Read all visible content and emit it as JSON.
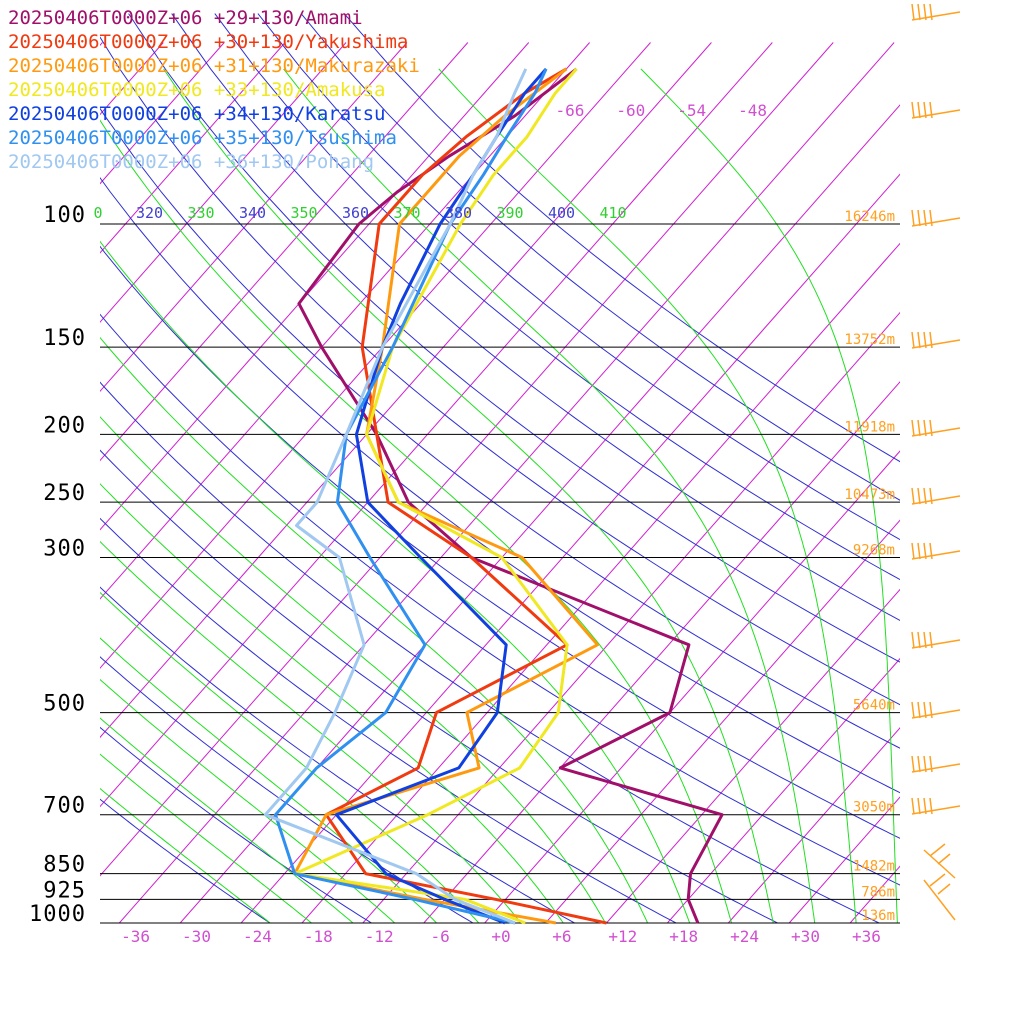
{
  "legend": [
    {
      "label": "20250406T0000Z+06 +29+130/Amami",
      "color": "#a0106a"
    },
    {
      "label": "20250406T0000Z+06 +30+130/Yakushima",
      "color": "#f03a10"
    },
    {
      "label": "20250406T0000Z+06 +31+130/Makurazaki",
      "color": "#ff9a10"
    },
    {
      "label": "20250406T0000Z+06 +33+130/Amakusa",
      "color": "#f0e820"
    },
    {
      "label": "20250406T0000Z+06 +34+130/Karatsu",
      "color": "#1040e0"
    },
    {
      "label": "20250406T0000Z+06 +35+130/Tsushima",
      "color": "#3090f0"
    },
    {
      "label": "20250406T0000Z+06 +36+130/Pohang",
      "color": "#a0c8f0"
    }
  ],
  "colors": {
    "isotherm": "#d020d0",
    "dry_adiabat": "#3030d0",
    "moist_adiabat": "#20e020",
    "height_label": "#ffa020",
    "wind_barb": "#ffa020",
    "axis_label": "#d050d0",
    "theta_label_blue": "#4040d0",
    "theta_label_green": "#30d030"
  },
  "pressure_labels": [
    {
      "p": 100,
      "label": "100"
    },
    {
      "p": 150,
      "label": "150"
    },
    {
      "p": 200,
      "label": "200"
    },
    {
      "p": 250,
      "label": "250"
    },
    {
      "p": 300,
      "label": "300"
    },
    {
      "p": 500,
      "label": "500"
    },
    {
      "p": 700,
      "label": "700"
    },
    {
      "p": 850,
      "label": "850"
    },
    {
      "p": 925,
      "label": "925"
    },
    {
      "p": 1000,
      "label": "1000"
    }
  ],
  "height_labels": [
    {
      "p": 100,
      "label": "16246m"
    },
    {
      "p": 150,
      "label": "13752m"
    },
    {
      "p": 200,
      "label": "11918m"
    },
    {
      "p": 250,
      "label": "10473m"
    },
    {
      "p": 300,
      "label": "9268m"
    },
    {
      "p": 500,
      "label": "5640m"
    },
    {
      "p": 700,
      "label": "3050m"
    },
    {
      "p": 850,
      "label": "1482m"
    },
    {
      "p": 925,
      "label": "786m"
    },
    {
      "p": 1000,
      "label": "136m"
    }
  ],
  "temperature_ticks": [
    "-36",
    "-30",
    "-24",
    "-18",
    "-12",
    "-6",
    "+0",
    "+6",
    "+12",
    "+18",
    "+24",
    "+30",
    "+36"
  ],
  "temperature_tick_values": [
    -36,
    -30,
    -24,
    -18,
    -12,
    -6,
    0,
    6,
    12,
    18,
    24,
    30,
    36
  ],
  "top_isotherm_labels": [
    "-66",
    "-60",
    "-54",
    "-48"
  ],
  "top_isotherm_values": [
    -66,
    -60,
    -54,
    -48
  ],
  "theta_labels": [
    {
      "label": "0",
      "kind": "moist"
    },
    {
      "label": "320",
      "kind": "dry"
    },
    {
      "label": "330",
      "kind": "moist"
    },
    {
      "label": "340",
      "kind": "dry"
    },
    {
      "label": "350",
      "kind": "moist"
    },
    {
      "label": "360",
      "kind": "dry"
    },
    {
      "label": "370",
      "kind": "moist"
    },
    {
      "label": "380",
      "kind": "dry"
    },
    {
      "label": "390",
      "kind": "moist"
    },
    {
      "label": "400",
      "kind": "dry"
    },
    {
      "label": "410",
      "kind": "moist"
    }
  ],
  "chart_data": {
    "type": "line",
    "subtype": "skew-T log-P sounding",
    "xlabel": "",
    "ylabel": "",
    "xlim": [
      -36,
      36
    ],
    "ylim": [
      1000,
      100
    ],
    "y_scale": "log",
    "grid": true,
    "legend_position": "top-left",
    "series": [
      {
        "name": "20250406T0000Z+06 +29+130/Amami",
        "color": "#a0106a",
        "points": [
          [
            1000,
            19
          ],
          [
            925,
            16
          ],
          [
            850,
            14
          ],
          [
            700,
            12
          ],
          [
            600,
            -8
          ],
          [
            500,
            -2
          ],
          [
            400,
            -6
          ],
          [
            300,
            -35
          ],
          [
            250,
            -46
          ],
          [
            200,
            -55
          ],
          [
            150,
            -68
          ],
          [
            130,
            -74
          ],
          [
            100,
            -75
          ],
          [
            90,
            -74
          ],
          [
            80,
            -72
          ],
          [
            70,
            -69
          ],
          [
            60,
            -67
          ]
        ]
      },
      {
        "name": "20250406T0000Z+06 +30+130/Yakushima",
        "color": "#f03a10",
        "points": [
          [
            1000,
            10
          ],
          [
            925,
            -3
          ],
          [
            850,
            -18
          ],
          [
            700,
            -27
          ],
          [
            600,
            -22
          ],
          [
            500,
            -25
          ],
          [
            400,
            -18
          ],
          [
            300,
            -35
          ],
          [
            250,
            -48
          ],
          [
            200,
            -55
          ],
          [
            150,
            -64
          ],
          [
            100,
            -73
          ],
          [
            85,
            -73
          ],
          [
            75,
            -72
          ],
          [
            65,
            -70
          ],
          [
            60,
            -68
          ]
        ]
      },
      {
        "name": "20250406T0000Z+06 +31+130/Makurazaki",
        "color": "#ff9a10",
        "points": [
          [
            1000,
            5
          ],
          [
            925,
            -10
          ],
          [
            850,
            -25
          ],
          [
            700,
            -27
          ],
          [
            600,
            -16
          ],
          [
            500,
            -22
          ],
          [
            400,
            -15
          ],
          [
            300,
            -30
          ],
          [
            250,
            -47
          ],
          [
            200,
            -56
          ],
          [
            150,
            -62
          ],
          [
            100,
            -71
          ],
          [
            80,
            -71
          ],
          [
            70,
            -70
          ],
          [
            60,
            -68
          ]
        ]
      },
      {
        "name": "20250406T0000Z+06 +33+130/Amakusa",
        "color": "#f0e820",
        "points": [
          [
            1000,
            2
          ],
          [
            925,
            -6
          ],
          [
            850,
            -25
          ],
          [
            700,
            -17
          ],
          [
            600,
            -12
          ],
          [
            500,
            -13
          ],
          [
            400,
            -18
          ],
          [
            300,
            -32
          ],
          [
            250,
            -47
          ],
          [
            200,
            -56
          ],
          [
            150,
            -61
          ],
          [
            100,
            -65
          ],
          [
            85,
            -66
          ],
          [
            75,
            -66
          ],
          [
            65,
            -67
          ],
          [
            60,
            -67
          ]
        ]
      },
      {
        "name": "20250406T0000Z+06 +34+130/Karatsu",
        "color": "#1040e0",
        "points": [
          [
            1000,
            0
          ],
          [
            925,
            -8
          ],
          [
            850,
            -16
          ],
          [
            700,
            -26
          ],
          [
            600,
            -18
          ],
          [
            500,
            -19
          ],
          [
            400,
            -24
          ],
          [
            300,
            -40
          ],
          [
            250,
            -50
          ],
          [
            200,
            -57
          ],
          [
            150,
            -62
          ],
          [
            130,
            -64
          ],
          [
            100,
            -67
          ],
          [
            85,
            -68
          ],
          [
            75,
            -69
          ],
          [
            65,
            -70
          ],
          [
            60,
            -70
          ]
        ]
      },
      {
        "name": "20250406T0000Z+06 +35+130/Tsushima",
        "color": "#3090f0",
        "points": [
          [
            1000,
            1
          ],
          [
            925,
            -11
          ],
          [
            850,
            -25
          ],
          [
            700,
            -32
          ],
          [
            600,
            -32
          ],
          [
            500,
            -30
          ],
          [
            400,
            -32
          ],
          [
            300,
            -45
          ],
          [
            250,
            -53
          ],
          [
            200,
            -58
          ],
          [
            150,
            -61
          ],
          [
            100,
            -66
          ],
          [
            85,
            -67
          ],
          [
            75,
            -68
          ],
          [
            65,
            -69
          ],
          [
            60,
            -70
          ]
        ]
      },
      {
        "name": "20250406T0000Z+06 +36+130/Pohang",
        "color": "#a0c8f0",
        "points": [
          [
            1000,
            1
          ],
          [
            925,
            -7
          ],
          [
            850,
            -13
          ],
          [
            700,
            -33
          ],
          [
            600,
            -33
          ],
          [
            500,
            -35
          ],
          [
            400,
            -38
          ],
          [
            300,
            -48
          ],
          [
            270,
            -55
          ],
          [
            250,
            -55
          ],
          [
            200,
            -58
          ],
          [
            150,
            -62
          ],
          [
            100,
            -66
          ],
          [
            85,
            -68
          ],
          [
            75,
            -69
          ],
          [
            65,
            -71
          ],
          [
            60,
            -72
          ]
        ]
      }
    ]
  }
}
